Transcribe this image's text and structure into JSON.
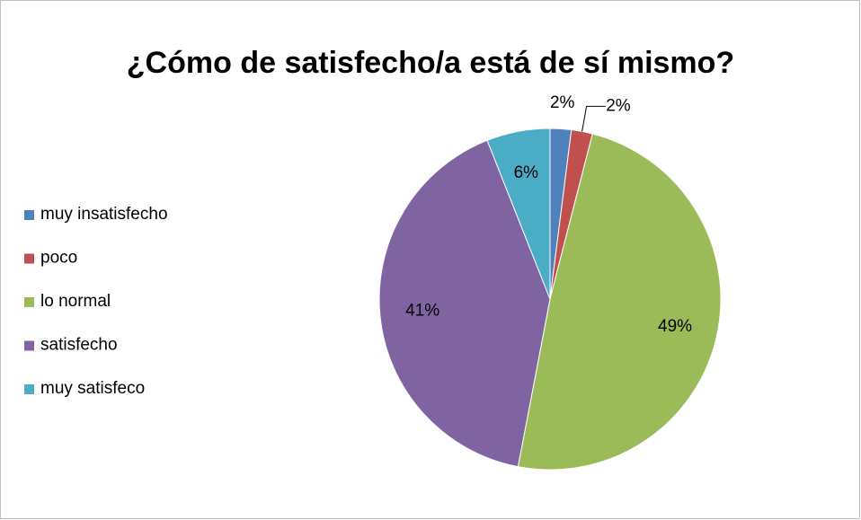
{
  "chart_data": {
    "type": "pie",
    "title": "¿Cómo de satisfecho/a está de sí mismo?",
    "categories": [
      "muy insatisfecho",
      "poco",
      "lo normal",
      "satisfecho",
      "muy satisfeco"
    ],
    "values": [
      2,
      2,
      49,
      41,
      6
    ],
    "value_labels": [
      "2%",
      "2%",
      "49%",
      "41%",
      "6%"
    ],
    "colors": [
      "#4f81bd",
      "#c0504d",
      "#9bbb59",
      "#8064a2",
      "#4bacc6"
    ],
    "legend": "left"
  }
}
